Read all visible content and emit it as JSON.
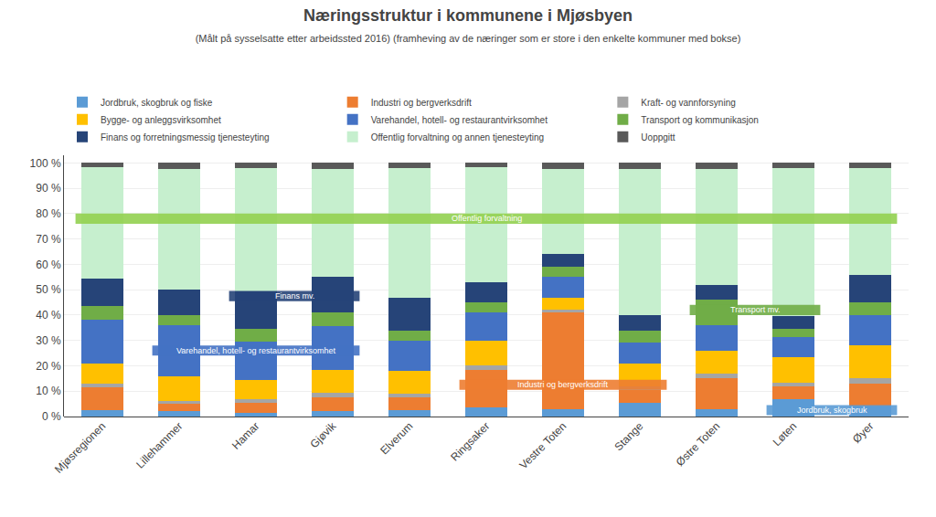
{
  "chart_data": {
    "type": "bar",
    "stacked": true,
    "title": "Næringsstruktur i kommunene i Mjøsbyen",
    "subtitle": "(Målt på sysselsatte etter arbeidssted 2016) (framheving av de næringer som er store i den enkelte kommuner med bokse)",
    "categories": [
      "Mjøsregionen",
      "Lillehammer",
      "Hamar",
      "Gjøvik",
      "Elverum",
      "Ringsaker",
      "Vestre Toten",
      "Stange",
      "Østre Toten",
      "Løten",
      "Øyer"
    ],
    "series": [
      {
        "name": "Jordbruk, skogbruk og fiske",
        "color": "#5B9BD5",
        "values": [
          2.5,
          2.0,
          1.5,
          2.0,
          2.5,
          3.5,
          3.0,
          5.5,
          3.0,
          7.0,
          4.0
        ]
      },
      {
        "name": "Industri og bergverksdrift",
        "color": "#ED7D31",
        "values": [
          9.0,
          3.0,
          4.0,
          5.5,
          5.0,
          15.0,
          38.0,
          5.0,
          12.0,
          5.0,
          9.0
        ]
      },
      {
        "name": "Kraft- og vannforsyning",
        "color": "#A5A5A5",
        "values": [
          1.5,
          1.0,
          1.5,
          2.0,
          1.5,
          1.5,
          1.0,
          1.5,
          2.0,
          1.5,
          2.0
        ]
      },
      {
        "name": "Bygge- og anleggsvirksomhet",
        "color": "#FFC000",
        "values": [
          8.0,
          10.0,
          7.5,
          9.0,
          9.0,
          10.0,
          5.0,
          9.0,
          9.0,
          10.0,
          13.0
        ]
      },
      {
        "name": "Varehandel, hotell- og restaurantvirksomhet",
        "color": "#4472C4",
        "values": [
          17.0,
          20.0,
          15.0,
          17.0,
          12.0,
          11.0,
          8.0,
          8.0,
          10.0,
          8.0,
          12.0
        ]
      },
      {
        "name": "Transport og kommunikasjon",
        "color": "#70AD47",
        "values": [
          5.5,
          4.0,
          5.0,
          5.5,
          4.0,
          4.0,
          4.0,
          5.0,
          10.0,
          3.0,
          5.0
        ]
      },
      {
        "name": "Finans og forretningsmessig tjenesteyting",
        "color": "#264478",
        "values": [
          11.0,
          10.0,
          15.0,
          14.0,
          13.0,
          8.0,
          5.0,
          6.0,
          6.0,
          5.0,
          11.0
        ]
      },
      {
        "name": "Offentlig forvaltning og annen tjenesteyting",
        "color": "#C6EFCE",
        "values": [
          44.0,
          47.5,
          48.5,
          42.5,
          51.0,
          45.5,
          33.5,
          57.5,
          45.5,
          58.5,
          42.0
        ]
      },
      {
        "name": "Uoppgitt",
        "color": "#595959",
        "values": [
          1.5,
          2.5,
          2.0,
          2.5,
          2.0,
          1.5,
          2.5,
          2.5,
          2.5,
          2.0,
          2.0
        ]
      }
    ],
    "annotations": [
      {
        "text": "Offentlig forvaltning",
        "x": [
          "Mjøsregionen",
          "Øyer"
        ],
        "y": 78.0,
        "color": "#92D050"
      },
      {
        "text": "Varehandel, hotell- og restaurantvirksomhet",
        "x": [
          "Lillehammer",
          "Gjøvik"
        ],
        "y": 26.0,
        "color": "#4472C4"
      },
      {
        "text": "Finans mv.",
        "x": [
          "Hamar",
          "Gjøvik"
        ],
        "y": 47.5,
        "color": "#264478"
      },
      {
        "text": "Industri og bergverksdrift",
        "x": [
          "Ringsaker",
          "Stange"
        ],
        "y": 12.5,
        "color": "#ED7D31"
      },
      {
        "text": "Transport mv.",
        "x": [
          "Østre Toten",
          "Løten"
        ],
        "y": 42.0,
        "color": "#70AD47"
      },
      {
        "text": "Jordbruk, skogbruk",
        "x": [
          "Løten",
          "Øyer"
        ],
        "y": 2.5,
        "color": "#5B9BD5"
      }
    ],
    "ylim": [
      0,
      103
    ],
    "yticks": [
      {
        "value": 0,
        "label": "0 %"
      },
      {
        "value": 10,
        "label": "10 %"
      },
      {
        "value": 20,
        "label": "20 %"
      },
      {
        "value": 30,
        "label": "30 %"
      },
      {
        "value": 40,
        "label": "40 %"
      },
      {
        "value": 50,
        "label": "50 %"
      },
      {
        "value": 60,
        "label": "60 %"
      },
      {
        "value": 70,
        "label": "70 %"
      },
      {
        "value": 80,
        "label": "80 %"
      },
      {
        "value": 90,
        "label": "90 %"
      },
      {
        "value": 100,
        "label": "100 %"
      }
    ],
    "grid": true
  }
}
